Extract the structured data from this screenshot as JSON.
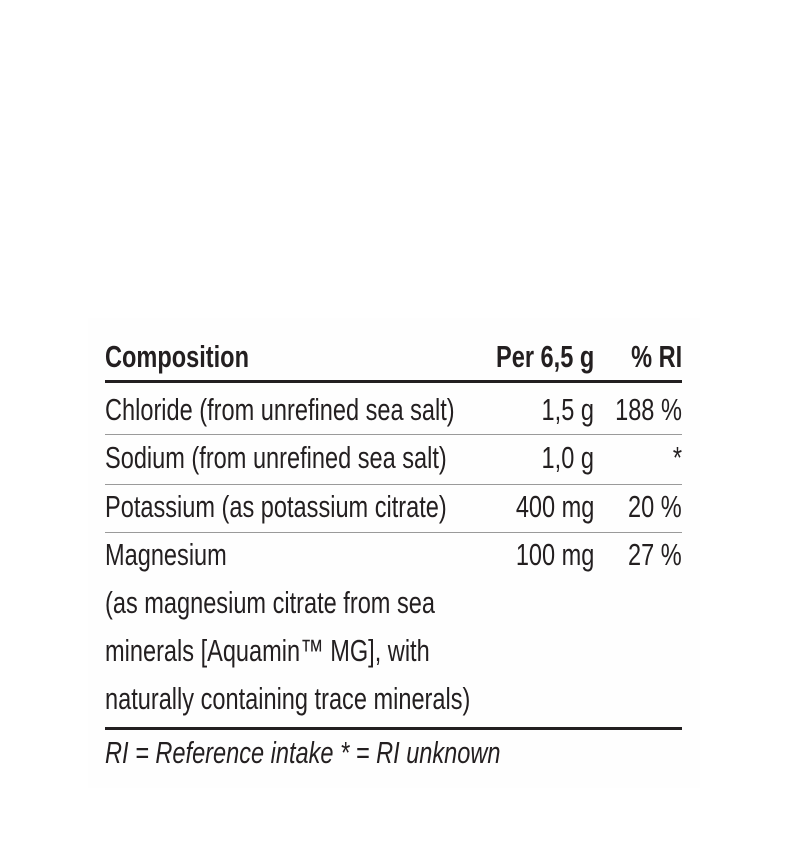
{
  "header": {
    "composition": "Composition",
    "per": "Per 6,5 g",
    "ri": "% RI"
  },
  "rows": [
    {
      "name": "Chloride (from unrefined sea salt)",
      "amount": "1,5 g",
      "ri": "188 %"
    },
    {
      "name": "Sodium (from unrefined sea salt)",
      "amount": "1,0 g",
      "ri": "*"
    },
    {
      "name": "Potassium (as potassium citrate)",
      "amount": "400 mg",
      "ri": "20 %"
    },
    {
      "name": "Magnesium",
      "detail": [
        "(as magnesium citrate from sea",
        "minerals [Aquamin™ MG], with",
        "naturally containing trace minerals)"
      ],
      "amount": "100 mg",
      "ri": "27 %"
    }
  ],
  "footnote": "RI = Reference intake * = RI unknown"
}
